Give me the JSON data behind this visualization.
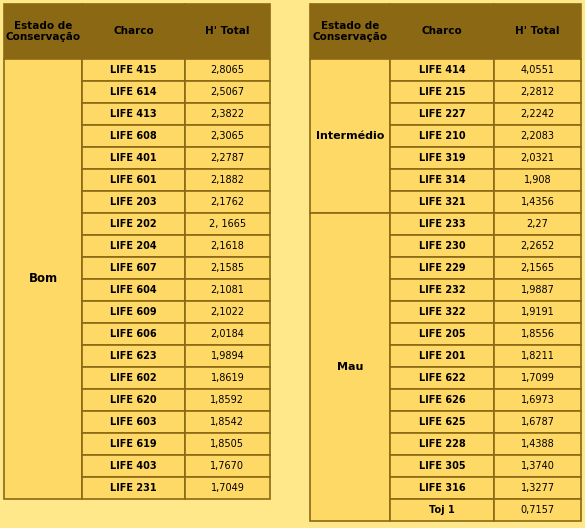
{
  "left_table": {
    "header": [
      "Estado de\nConservação",
      "Charco",
      "H' Total"
    ],
    "group": "Bom",
    "rows": [
      [
        "LIFE 415",
        "2,8065"
      ],
      [
        "LIFE 614",
        "2,5067"
      ],
      [
        "LIFE 413",
        "2,3822"
      ],
      [
        "LIFE 608",
        "2,3065"
      ],
      [
        "LIFE 401",
        "2,2787"
      ],
      [
        "LIFE 601",
        "2,1882"
      ],
      [
        "LIFE 203",
        "2,1762"
      ],
      [
        "LIFE 202",
        "2, 1665"
      ],
      [
        "LIFE 204",
        "2,1618"
      ],
      [
        "LIFE 607",
        "2,1585"
      ],
      [
        "LIFE 604",
        "2,1081"
      ],
      [
        "LIFE 609",
        "2,1022"
      ],
      [
        "LIFE 606",
        "2,0184"
      ],
      [
        "LIFE 623",
        "1,9894"
      ],
      [
        "LIFE 602",
        "1,8619"
      ],
      [
        "LIFE 620",
        "1,8592"
      ],
      [
        "LIFE 603",
        "1,8542"
      ],
      [
        "LIFE 619",
        "1,8505"
      ],
      [
        "LIFE 403",
        "1,7670"
      ],
      [
        "LIFE 231",
        "1,7049"
      ]
    ]
  },
  "right_table": {
    "header": [
      "Estado de\nConservação",
      "Charco",
      "H' Total"
    ],
    "groups": [
      {
        "name": "Intermédio",
        "rows": [
          [
            "LIFE 414",
            "4,0551"
          ],
          [
            "LIFE 215",
            "2,2812"
          ],
          [
            "LIFE 227",
            "2,2242"
          ],
          [
            "LIFE 210",
            "2,2083"
          ],
          [
            "LIFE 319",
            "2,0321"
          ],
          [
            "LIFE 314",
            "1,908"
          ],
          [
            "LIFE 321",
            "1,4356"
          ]
        ]
      },
      {
        "name": "Mau",
        "rows": [
          [
            "LIFE 233",
            "2,27"
          ],
          [
            "LIFE 230",
            "2,2652"
          ],
          [
            "LIFE 229",
            "2,1565"
          ],
          [
            "LIFE 232",
            "1,9887"
          ],
          [
            "LIFE 322",
            "1,9191"
          ],
          [
            "LIFE 205",
            "1,8556"
          ],
          [
            "LIFE 201",
            "1,8211"
          ],
          [
            "LIFE 622",
            "1,7099"
          ],
          [
            "LIFE 626",
            "1,6973"
          ],
          [
            "LIFE 625",
            "1,6787"
          ],
          [
            "LIFE 228",
            "1,4388"
          ],
          [
            "LIFE 305",
            "1,3740"
          ],
          [
            "LIFE 316",
            "1,3277"
          ],
          [
            "Toj 1",
            "0,7157"
          ]
        ]
      }
    ]
  },
  "colors": {
    "header_bg": "#8B6914",
    "cell_bg": "#FFD966",
    "border": "#8B6914",
    "text_dark": "#000000",
    "bg": "#FFE88A"
  },
  "figsize": [
    5.85,
    5.28
  ],
  "dpi": 100
}
